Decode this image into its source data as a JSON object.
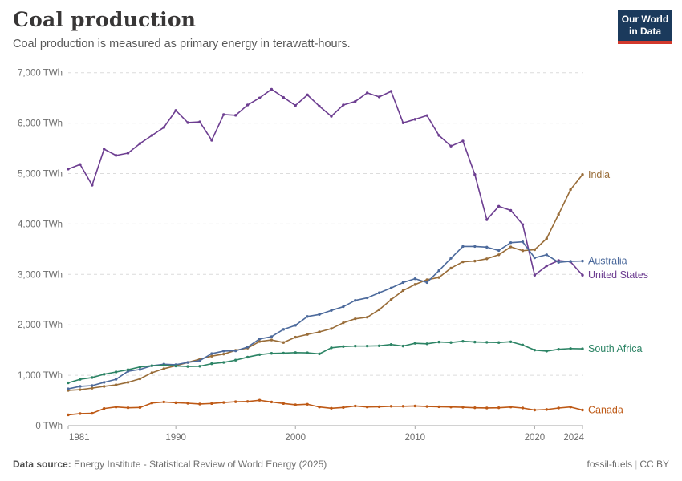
{
  "header": {
    "title": "Coal production",
    "subtitle": "Coal production is measured as primary energy in terawatt-hours.",
    "logo_line1": "Our World",
    "logo_line2": "in Data"
  },
  "footer": {
    "source_label": "Data source:",
    "source_value": "Energy Institute - Statistical Review of World Energy (2025)",
    "right_left": "fossil-fuels",
    "right_sep": "|",
    "right_cc": "CC BY"
  },
  "colors": {
    "logo_bg": "#1b3a5c",
    "logo_stripe": "#d2392c",
    "grid": "#dcdcdc",
    "axis": "#a5a5a5",
    "tick_text": "#6e6e6e"
  },
  "chart_data": {
    "type": "line",
    "title": "Coal production",
    "unit": "TWh",
    "xlim": [
      1981,
      2024
    ],
    "ylim": [
      0,
      7000
    ],
    "grid": "dashed horizontal",
    "legend_position": "end-of-line labels",
    "yticks": [
      0,
      1000,
      2000,
      3000,
      4000,
      5000,
      6000,
      7000
    ],
    "xticks": [
      1981,
      1990,
      2000,
      2010,
      2020,
      2024
    ],
    "years": [
      1981,
      1982,
      1983,
      1984,
      1985,
      1986,
      1987,
      1988,
      1989,
      1990,
      1991,
      1992,
      1993,
      1994,
      1995,
      1996,
      1997,
      1998,
      1999,
      2000,
      2001,
      2002,
      2003,
      2004,
      2005,
      2006,
      2007,
      2008,
      2009,
      2010,
      2011,
      2012,
      2013,
      2014,
      2015,
      2016,
      2017,
      2018,
      2019,
      2020,
      2021,
      2022,
      2023,
      2024
    ],
    "series": [
      {
        "name": "United States",
        "color": "#6D3E91",
        "values": [
          5090,
          5180,
          4770,
          5485,
          5360,
          5405,
          5595,
          5755,
          5915,
          6250,
          6010,
          6025,
          5660,
          6170,
          6155,
          6360,
          6500,
          6670,
          6510,
          6350,
          6560,
          6335,
          6135,
          6360,
          6430,
          6600,
          6520,
          6630,
          6005,
          6075,
          6150,
          5755,
          5545,
          5645,
          4980,
          4085,
          4350,
          4270,
          3990,
          2985,
          3170,
          3275,
          3250,
          2985
        ]
      },
      {
        "name": "India",
        "color": "#996D39",
        "values": [
          700,
          715,
          745,
          780,
          810,
          860,
          930,
          1050,
          1130,
          1190,
          1255,
          1320,
          1380,
          1420,
          1495,
          1540,
          1670,
          1700,
          1650,
          1755,
          1810,
          1860,
          1925,
          2040,
          2120,
          2150,
          2300,
          2500,
          2680,
          2800,
          2895,
          2940,
          3125,
          3250,
          3265,
          3310,
          3390,
          3545,
          3470,
          3490,
          3710,
          4190,
          4680,
          4980
        ]
      },
      {
        "name": "Australia",
        "color": "#4C6A9C",
        "values": [
          730,
          780,
          795,
          860,
          920,
          1080,
          1115,
          1190,
          1220,
          1210,
          1255,
          1290,
          1430,
          1480,
          1485,
          1560,
          1720,
          1765,
          1910,
          1990,
          2165,
          2205,
          2285,
          2360,
          2485,
          2535,
          2635,
          2730,
          2840,
          2915,
          2840,
          3075,
          3320,
          3555,
          3555,
          3540,
          3475,
          3630,
          3645,
          3330,
          3390,
          3240,
          3260,
          3265
        ]
      },
      {
        "name": "South Africa",
        "color": "#2C8465",
        "values": [
          850,
          920,
          955,
          1020,
          1065,
          1110,
          1165,
          1190,
          1200,
          1185,
          1175,
          1180,
          1230,
          1255,
          1300,
          1360,
          1410,
          1435,
          1440,
          1450,
          1445,
          1425,
          1545,
          1570,
          1580,
          1580,
          1585,
          1610,
          1580,
          1635,
          1625,
          1660,
          1650,
          1675,
          1660,
          1655,
          1650,
          1665,
          1600,
          1500,
          1480,
          1515,
          1530,
          1525
        ]
      },
      {
        "name": "Canada",
        "color": "#BE5915",
        "values": [
          215,
          240,
          245,
          340,
          370,
          355,
          360,
          450,
          470,
          455,
          445,
          430,
          440,
          460,
          475,
          480,
          505,
          470,
          440,
          415,
          425,
          370,
          345,
          360,
          390,
          370,
          375,
          385,
          385,
          390,
          380,
          375,
          370,
          365,
          355,
          350,
          355,
          370,
          350,
          310,
          320,
          350,
          370,
          310
        ]
      }
    ]
  }
}
